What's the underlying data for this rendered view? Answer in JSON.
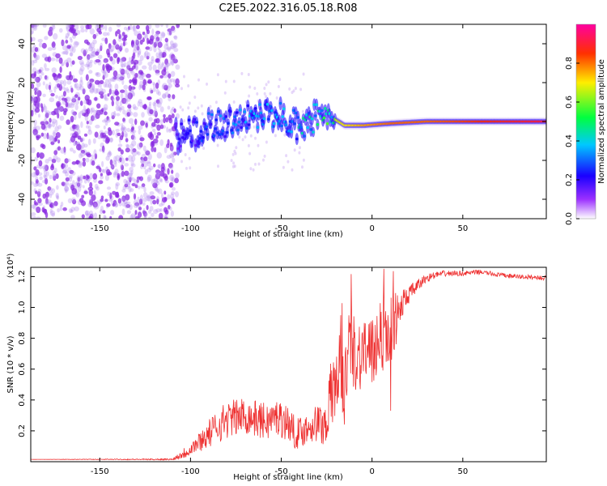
{
  "title": "C2E5.2022.316.05.18.R08",
  "chart_data": [
    {
      "type": "heatmap",
      "title": "",
      "xlabel": "Height of straight line (km)",
      "ylabel": "Frequency (Hz)",
      "xlim": [
        -188,
        96
      ],
      "ylim": [
        -50,
        50
      ],
      "x_ticks": [
        -150,
        -100,
        -50,
        0,
        50
      ],
      "y_ticks": [
        -40,
        -20,
        0,
        20,
        40
      ],
      "colorbar": {
        "label": "Normalized spectral amplitude",
        "range": [
          0.0,
          1.0
        ],
        "ticks": [
          0.0,
          0.2,
          0.4,
          0.6,
          0.8
        ],
        "colors": [
          "#ffffff",
          "#9b30ff",
          "#1a00ff",
          "#00c8ff",
          "#00ff40",
          "#ffee00",
          "#ff3000",
          "#ff00a0"
        ]
      },
      "ridge": {
        "x": [
          -108,
          -95,
          -85,
          -75,
          -62,
          -50,
          -42,
          -35,
          -28,
          -22,
          -15,
          -5,
          10,
          30,
          60,
          95
        ],
        "freq": [
          -8,
          -5,
          -1,
          0,
          2,
          3,
          -2,
          0,
          4,
          2,
          -2,
          -2,
          -1,
          0,
          0,
          0
        ],
        "amplitude": [
          0.2,
          0.3,
          0.35,
          0.35,
          0.4,
          0.4,
          0.45,
          0.5,
          0.55,
          0.65,
          0.7,
          0.75,
          0.8,
          0.8,
          0.85,
          0.9
        ]
      }
    },
    {
      "type": "line",
      "title": "",
      "xlabel": "Height of straight line (km)",
      "ylabel": "SNR (10 * v/v)",
      "y_multiplier": "(x10⁴)",
      "xlim": [
        -188,
        96
      ],
      "ylim": [
        0,
        1.26
      ],
      "x_ticks": [
        -150,
        -100,
        -50,
        0,
        50
      ],
      "y_ticks": [
        0.2,
        0.4,
        0.6,
        0.8,
        1.0,
        1.2
      ],
      "series": [
        {
          "name": "SNR",
          "color": "#ee3030",
          "x": [
            -188,
            -110,
            -103,
            -96,
            -88,
            -82,
            -78,
            -70,
            -65,
            -58,
            -52,
            -46,
            -42,
            -38,
            -32,
            -26,
            -22,
            -18,
            -15,
            -12,
            -8,
            -4,
            0,
            4,
            8,
            12,
            16,
            20,
            25,
            30,
            35,
            40,
            50,
            60,
            70,
            80,
            96
          ],
          "y": [
            0.015,
            0.015,
            0.06,
            0.12,
            0.2,
            0.26,
            0.28,
            0.3,
            0.28,
            0.26,
            0.29,
            0.25,
            0.18,
            0.2,
            0.25,
            0.24,
            0.45,
            0.6,
            0.5,
            0.78,
            0.68,
            0.74,
            0.66,
            0.86,
            0.8,
            0.9,
            1.0,
            1.08,
            1.14,
            1.19,
            1.21,
            1.22,
            1.22,
            1.23,
            1.21,
            1.2,
            1.19
          ],
          "noise": [
            0,
            0.005,
            0.04,
            0.06,
            0.1,
            0.12,
            0.12,
            0.12,
            0.12,
            0.12,
            0.12,
            0.12,
            0.1,
            0.1,
            0.12,
            0.15,
            0.25,
            0.25,
            0.3,
            0.25,
            0.25,
            0.25,
            0.25,
            0.25,
            0.25,
            0.2,
            0.12,
            0.06,
            0.04,
            0.03,
            0.02,
            0.02,
            0.015,
            0.015,
            0.015,
            0.015,
            0.015
          ]
        }
      ]
    }
  ]
}
